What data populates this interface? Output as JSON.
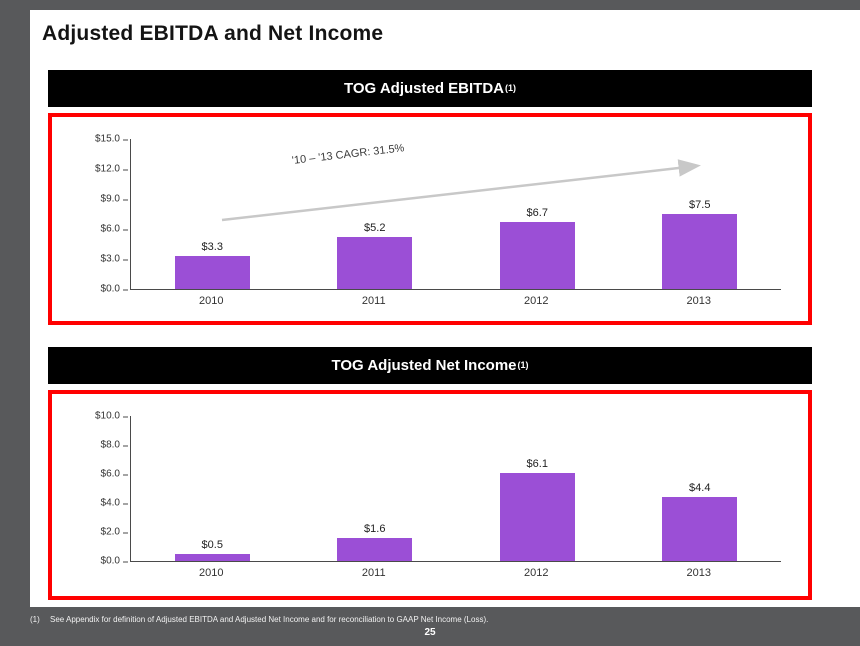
{
  "slide": {
    "title": "Adjusted EBITDA and Net Income",
    "page_number": "25",
    "footnote": {
      "marker": "(1)",
      "text": "See Appendix for definition of Adjusted EBITDA and Adjusted Net Income and for reconciliation to GAAP Net Income (Loss)."
    }
  },
  "theme": {
    "background": "#58595B",
    "banner_bg": "#000000",
    "banner_text_color": "#FFFFFF",
    "panel_border_color": "#FF0000",
    "bar_color": "#9B4FD6",
    "arrow_color": "#C8C8C8"
  },
  "chart_data": [
    {
      "type": "bar",
      "title": "TOG Adjusted EBITDA",
      "title_sup": "(1)",
      "categories": [
        "2010",
        "2011",
        "2012",
        "2013"
      ],
      "values": [
        3.3,
        5.2,
        6.7,
        7.5
      ],
      "value_labels": [
        "$3.3",
        "$5.2",
        "$6.7",
        "$7.5"
      ],
      "ylim": [
        0,
        15
      ],
      "yticks": [
        "$15.0",
        "$12.0",
        "$9.0",
        "$6.0",
        "$3.0",
        "$0.0"
      ],
      "annotation": "'10 – '13 CAGR: 31.5%",
      "legend": "none",
      "grid": "off"
    },
    {
      "type": "bar",
      "title": "TOG Adjusted Net Income",
      "title_sup": "(1)",
      "categories": [
        "2010",
        "2011",
        "2012",
        "2013"
      ],
      "values": [
        0.5,
        1.6,
        6.1,
        4.4
      ],
      "value_labels": [
        "$0.5",
        "$1.6",
        "$6.1",
        "$4.4"
      ],
      "ylim": [
        0,
        10
      ],
      "yticks": [
        "$10.0",
        "$8.0",
        "$6.0",
        "$4.0",
        "$2.0",
        "$0.0"
      ],
      "legend": "none",
      "grid": "off"
    }
  ]
}
